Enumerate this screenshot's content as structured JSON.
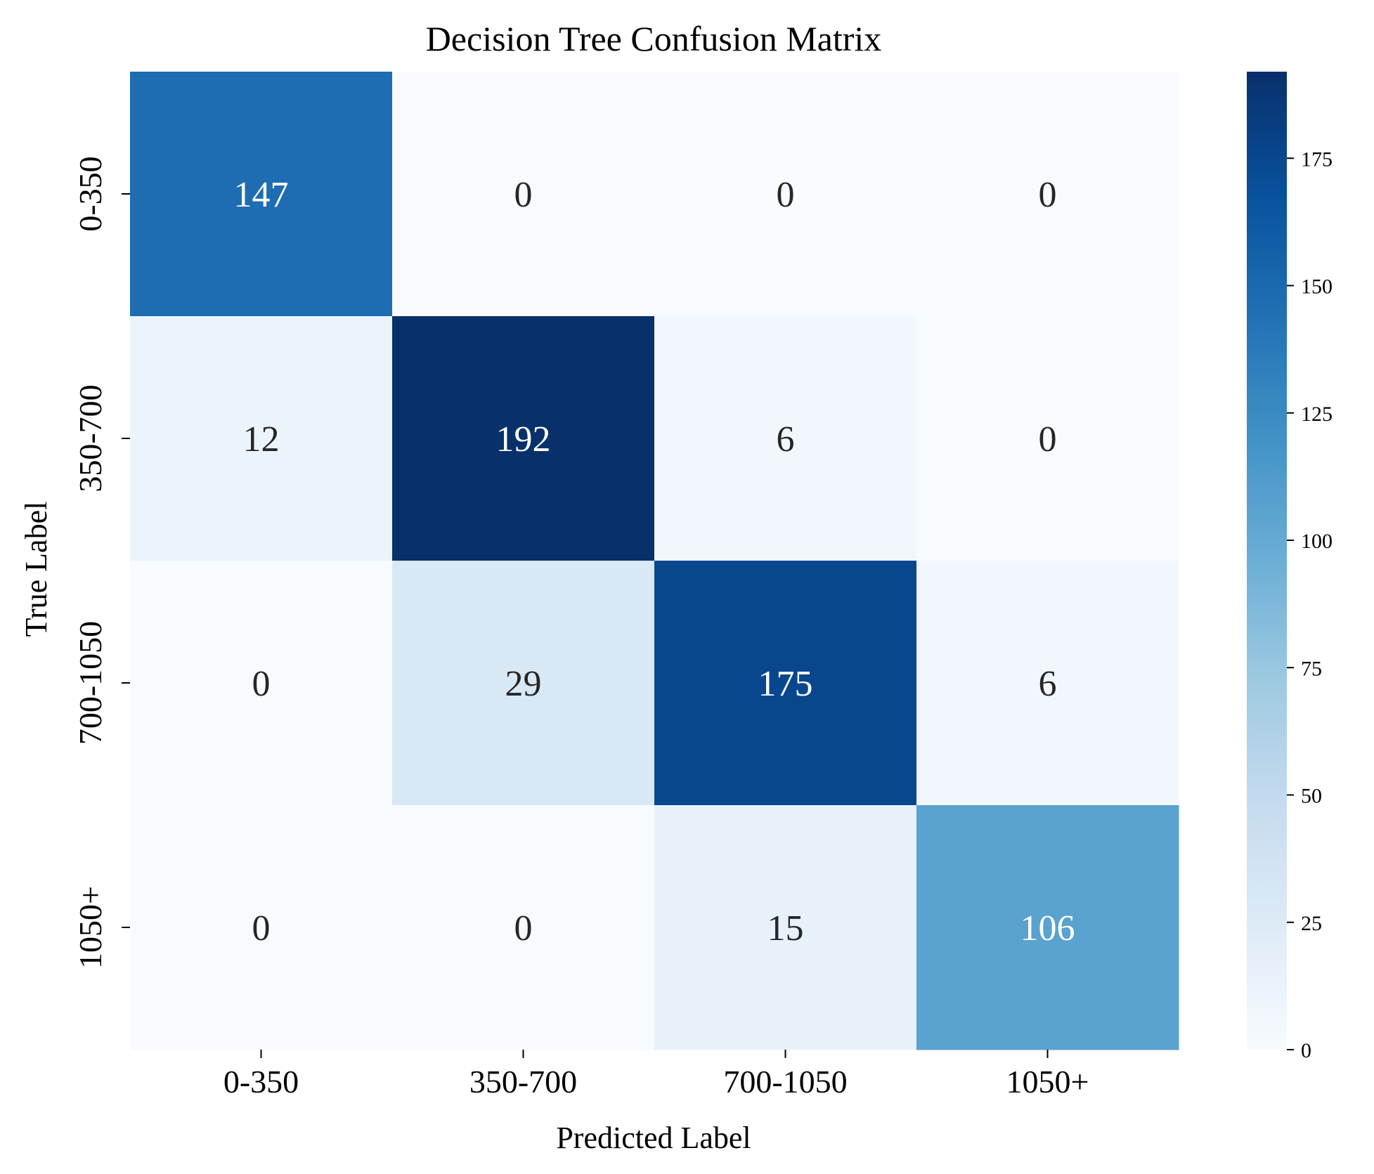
{
  "chart_data": {
    "type": "heatmap",
    "title": "Decision Tree Confusion Matrix",
    "xlabel": "Predicted Label",
    "ylabel": "True Label",
    "x_categories": [
      "0-350",
      "350-700",
      "700-1050",
      "1050+"
    ],
    "y_categories": [
      "0-350",
      "350-700",
      "700-1050",
      "1050+"
    ],
    "values": [
      [
        147,
        0,
        0,
        0
      ],
      [
        12,
        192,
        6,
        0
      ],
      [
        0,
        29,
        175,
        6
      ],
      [
        0,
        0,
        15,
        106
      ]
    ],
    "colormap": "Blues",
    "vmin": 0,
    "vmax": 192,
    "colorbar_ticks": [
      0,
      25,
      50,
      75,
      100,
      125,
      150,
      175
    ],
    "annotation_colors": {
      "dark_text": "#262626",
      "light_text": "#ffffff"
    }
  }
}
